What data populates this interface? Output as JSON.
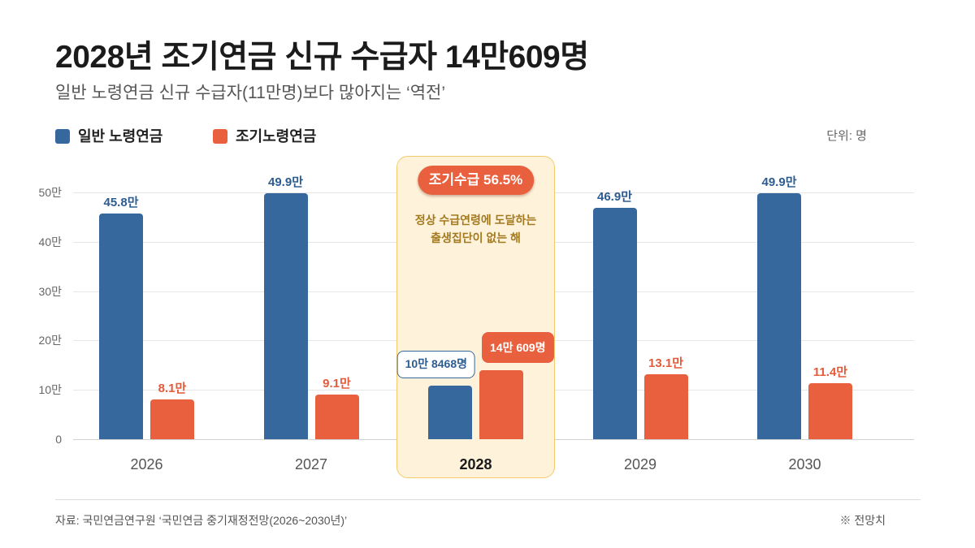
{
  "header": {
    "title": "2028년 조기연금 신규 수급자 14만609명",
    "subtitle": "일반 노령연금 신규 수급자(11만명)보다 많아지는 ‘역전’"
  },
  "chart_data": {
    "type": "bar",
    "unit_label": "단위: 명",
    "categories": [
      "2026",
      "2027",
      "2028",
      "2029",
      "2030"
    ],
    "series": [
      {
        "name": "일반 노령연금",
        "color": "#36679D",
        "values": [
          458000,
          499000,
          108468,
          469000,
          499000
        ],
        "labels": [
          "45.8만",
          "49.9만",
          "10만 8468명",
          "46.9만",
          "49.9만"
        ]
      },
      {
        "name": "조기노령연금",
        "color": "#E9603F",
        "values": [
          81000,
          91000,
          140609,
          131000,
          114000
        ],
        "labels": [
          "8.1만",
          "9.1만",
          "14만 609명",
          "13.1만",
          "11.4만"
        ]
      }
    ],
    "yticks": [
      {
        "value": 0,
        "label": "0"
      },
      {
        "value": 100000,
        "label": "10만"
      },
      {
        "value": 200000,
        "label": "20만"
      },
      {
        "value": 300000,
        "label": "30만"
      },
      {
        "value": 400000,
        "label": "40만"
      },
      {
        "value": 500000,
        "label": "50만"
      }
    ],
    "ylim": [
      0,
      500000
    ],
    "grid": true,
    "legend_position": "top-left",
    "highlight": {
      "category": "2028",
      "badge": "조기수급 56.5%",
      "note": [
        "정상 수급연령에 도달하는",
        "출생집단이 없는 해"
      ]
    }
  },
  "footer": {
    "source": "자료: 국민연금연구원 ‘국민연금 중기재정전망(2026~2030년)’",
    "note": "※ 전망치"
  }
}
